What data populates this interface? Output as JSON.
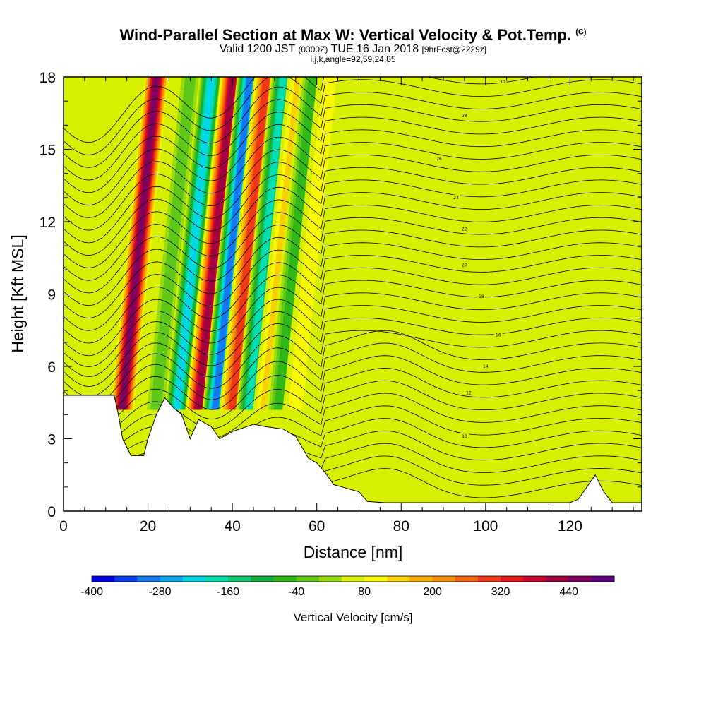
{
  "header": {
    "title": "Wind-Parallel Section at Max W: Vertical Velocity & Pot.Temp.",
    "copyright": "(C)",
    "valid_prefix": "Valid 1200 JST",
    "valid_utc": "(0300Z)",
    "valid_date": "TUE 16 Jan 2018",
    "forecast": "[9hrFcst@2229z]",
    "indices": "i,j,k,angle=92,59,24,85"
  },
  "chart_data": {
    "type": "heatmap",
    "xlabel": "Distance [nm]",
    "ylabel": "Height [Kft MSL]",
    "xlim": [
      0,
      137
    ],
    "ylim": [
      0,
      18
    ],
    "x_ticks": [
      0,
      20,
      40,
      60,
      80,
      100,
      120
    ],
    "y_ticks": [
      0,
      3,
      6,
      9,
      12,
      15,
      18
    ],
    "colorbar": {
      "label": "Vertical Velocity [cm/s]",
      "min": -400,
      "step": 40,
      "tick_labels": [
        "-400",
        "-280",
        "-160",
        "-40",
        "80",
        "200",
        "320",
        "440"
      ],
      "colors": [
        "#0000ee",
        "#0a3cf0",
        "#1478f0",
        "#00a8ee",
        "#00d8e8",
        "#00e0b0",
        "#10c870",
        "#10b040",
        "#30b818",
        "#60c818",
        "#98dc10",
        "#d8f000",
        "#f8f800",
        "#f8d000",
        "#f8b000",
        "#f89000",
        "#f86810",
        "#f03818",
        "#e01818",
        "#c80030",
        "#a00040",
        "#800060",
        "#600080"
      ]
    },
    "series": [
      {
        "name": "Vertical Velocity [cm/s]",
        "band_centers_nm": [
          16,
          24,
          29,
          34,
          38,
          42,
          46,
          50,
          53,
          57
        ],
        "peak_values_cm_s": [
          440,
          -40,
          -240,
          400,
          -320,
          280,
          -200,
          120,
          -80,
          80
        ]
      },
      {
        "name": "Pot.Temp.",
        "contour_labels": [
          "30",
          "28",
          "26",
          "24",
          "22",
          "20",
          "18",
          "16",
          "14",
          "12",
          "10"
        ]
      }
    ],
    "terrain_profile": {
      "x": [
        0,
        12,
        13,
        14,
        16,
        19,
        20,
        22,
        24,
        26,
        28,
        30,
        32,
        35,
        37,
        40,
        45,
        48,
        52,
        55,
        58,
        60,
        62,
        64,
        66,
        70,
        72,
        76,
        80,
        84,
        88,
        92,
        96,
        100,
        104,
        108,
        112,
        116,
        120,
        122,
        124,
        126,
        128,
        130,
        137
      ],
      "y": [
        4.8,
        4.8,
        4.0,
        3.0,
        2.3,
        2.3,
        3.0,
        4.0,
        4.7,
        4.3,
        4.0,
        3.0,
        3.8,
        3.5,
        3.0,
        3.3,
        3.6,
        3.5,
        3.4,
        3.1,
        2.2,
        2.0,
        1.6,
        1.1,
        1.0,
        0.8,
        0.4,
        0.35,
        0.35,
        0.35,
        0.35,
        0.35,
        0.35,
        0.35,
        0.35,
        0.35,
        0.35,
        0.35,
        0.35,
        0.5,
        1.0,
        1.5,
        0.8,
        0.35,
        0.35
      ]
    }
  }
}
